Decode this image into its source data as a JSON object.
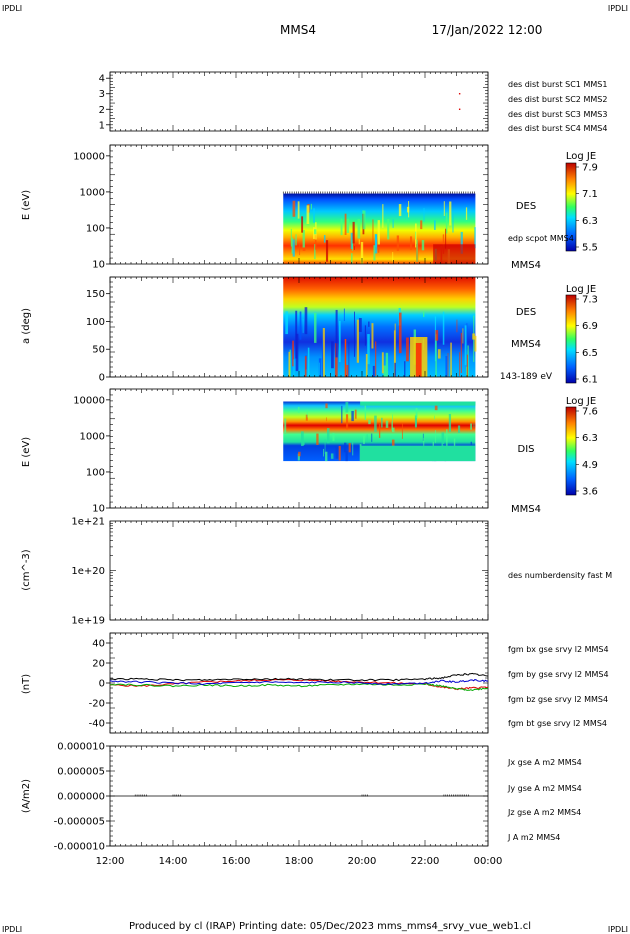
{
  "corner_marks": [
    "IPDLI",
    "IPDLI",
    "IPDLI",
    "IPDLI"
  ],
  "header": {
    "spacecraft": "MMS4",
    "date_time": "17/Jan/2022 12:00"
  },
  "footer": "Produced by cl (IRAP)   Printing date: 05/Dec/2023   mms_mms4_srvy_vue_web1.cl",
  "colors": {
    "blue": "#0000cc",
    "magenta": "#cc00cc",
    "red": "#dd0000",
    "green": "#00aa00",
    "black": "#000000"
  },
  "chart_data": [
    {
      "type": "scatter",
      "x_range_hours": [
        12,
        24
      ],
      "x_tick_labels": [
        "12:00",
        "14:00",
        "16:00",
        "18:00",
        "20:00",
        "22:00",
        "00:00"
      ],
      "ylim": [
        0.6,
        4.4
      ],
      "y_ticks": [
        "1",
        "2",
        "3",
        "4"
      ],
      "legend": [
        "des dist burst SC1 MMS1",
        "des dist burst SC2 MMS2",
        "des dist burst SC3 MMS3",
        "des dist burst SC4 MMS4"
      ],
      "points": [
        {
          "x": 23.1,
          "y": 3.0,
          "color": "#dd0000"
        },
        {
          "x": 23.1,
          "y": 2.0,
          "color": "#dd0000"
        }
      ]
    },
    {
      "type": "heatmap",
      "ylabel": "E (eV)",
      "y_scale": "log",
      "ylim": [
        10,
        20000
      ],
      "y_ticks": [
        "10000",
        "1000",
        "100",
        "10"
      ],
      "data_x_range": [
        17.5,
        23.6
      ],
      "instrument": "DES",
      "annotation": "edp scpot MMS4",
      "spacecraft": "MMS4",
      "colorbar": {
        "title": "Log JE",
        "ticks": [
          "7.9",
          "7.1",
          "6.3",
          "5.5"
        ]
      }
    },
    {
      "type": "heatmap",
      "ylabel": "a (deg)",
      "ylim": [
        0,
        180
      ],
      "y_ticks": [
        "150",
        "100",
        "50",
        "0"
      ],
      "data_x_range": [
        17.5,
        23.6
      ],
      "instrument": "DES",
      "spacecraft": "MMS4",
      "energy_band": "143-189 eV",
      "colorbar": {
        "title": "Log JE",
        "ticks": [
          "7.3",
          "6.9",
          "6.5",
          "6.1"
        ]
      }
    },
    {
      "type": "heatmap",
      "ylabel": "E (eV)",
      "y_scale": "log",
      "ylim": [
        10,
        20000
      ],
      "y_ticks": [
        "10000",
        "1000",
        "100",
        "10"
      ],
      "data_x_range": [
        17.5,
        23.6
      ],
      "instrument": "DIS",
      "spacecraft": "MMS4",
      "colorbar": {
        "title": "Log JE",
        "ticks": [
          "7.6",
          "6.3",
          "4.9",
          "3.6"
        ]
      }
    },
    {
      "type": "line",
      "ylabel": "(cm^-3)",
      "y_ticks": [
        "1e+21",
        "1e+20",
        "1e+19"
      ],
      "legend": [
        "des numberdensity fast M"
      ],
      "series": []
    },
    {
      "type": "line",
      "ylabel": "(nT)",
      "ylim": [
        -50,
        50
      ],
      "y_ticks": [
        "40",
        "20",
        "0",
        "-20",
        "-40"
      ],
      "legend": [
        "fgm bx gse srvy l2 MMS4",
        "fgm by gse srvy l2 MMS4",
        "fgm bz gse srvy l2 MMS4",
        "fgm bt gse srvy l2 MMS4"
      ],
      "series": [
        {
          "color": "#dd0000",
          "x": [
            12,
            13,
            14,
            15,
            16,
            17,
            18,
            19,
            20,
            21,
            22,
            22.5,
            23,
            23.5,
            24
          ],
          "y": [
            -2,
            -3,
            -1,
            1,
            2,
            3,
            3,
            2,
            1,
            0,
            -1,
            -4,
            -6,
            -5,
            -4
          ]
        },
        {
          "color": "#00aa00",
          "x": [
            12,
            13,
            14,
            15,
            16,
            17,
            18,
            19,
            20,
            21,
            22,
            22.5,
            23,
            23.5,
            24
          ],
          "y": [
            -1,
            -2,
            -3,
            -2,
            -3,
            -2,
            -3,
            -2,
            -1,
            -2,
            -1,
            -3,
            -6,
            -7,
            -5
          ]
        },
        {
          "color": "#0000cc",
          "x": [
            12,
            13,
            14,
            15,
            16,
            17,
            18,
            19,
            20,
            21,
            22,
            22.5,
            23,
            23.5,
            24
          ],
          "y": [
            2,
            1,
            0,
            -1,
            0,
            1,
            0,
            1,
            0,
            -1,
            0,
            2,
            1,
            3,
            2
          ]
        },
        {
          "color": "#000000",
          "x": [
            12,
            13,
            14,
            15,
            16,
            17,
            18,
            19,
            20,
            21,
            22,
            22.5,
            23,
            23.5,
            24
          ],
          "y": [
            4,
            4,
            3,
            3,
            4,
            4,
            4,
            3,
            3,
            3,
            4,
            5,
            8,
            9,
            7
          ]
        }
      ]
    },
    {
      "type": "line",
      "ylabel": "(A/m2)",
      "ylim": [
        -1e-05,
        1e-05
      ],
      "y_ticks": [
        "0.000010",
        "0.000005",
        "0.000000",
        "-0.000005",
        "-0.000010"
      ],
      "legend": [
        "Jx gse A m2 MMS4",
        "Jy gse A m2 MMS4",
        "Jz gse A m2 MMS4",
        "J A m2 MMS4"
      ],
      "series": [
        {
          "color": "#000000",
          "x": [
            12,
            24
          ],
          "y": [
            0,
            0
          ]
        }
      ]
    }
  ]
}
